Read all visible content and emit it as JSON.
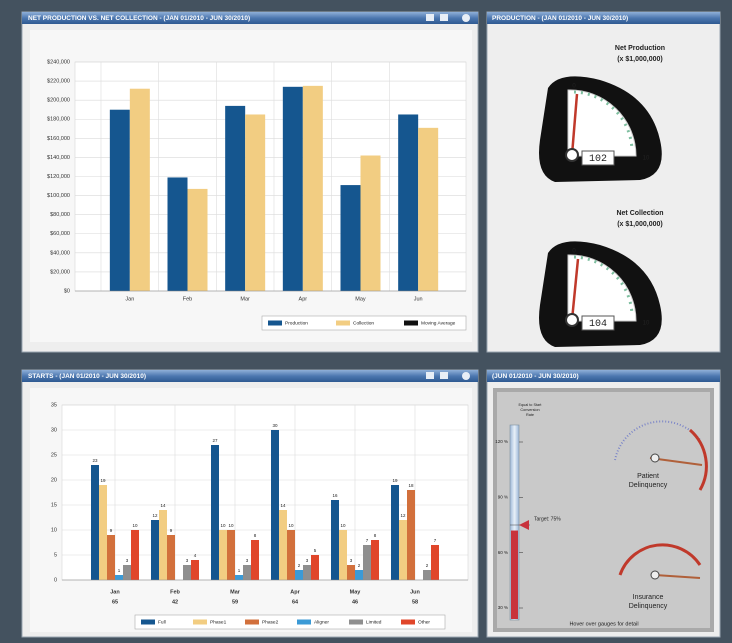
{
  "panels": [
    {
      "title": "NET PRODUCTION VS. NET COLLECTION - (JAN 01/2010 - JUN 30/2010)"
    },
    {
      "title": "PRODUCTION - (JAN 01/2010 - JUN 30/2010)"
    },
    {
      "title": "STARTS - (JAN 01/2010 - JUN 30/2010)"
    },
    {
      "title": "(JUN 01/2010 - JUN 30/2010)"
    }
  ],
  "chart_data": [
    {
      "type": "bar",
      "categories": [
        "Jan",
        "Feb",
        "Mar",
        "Apr",
        "May",
        "Jun"
      ],
      "series": [
        {
          "name": "Production",
          "color": "#15568f",
          "values": [
            190000,
            119000,
            194000,
            214000,
            111000,
            185000
          ]
        },
        {
          "name": "Collection",
          "color": "#f2cd82",
          "values": [
            212000,
            107000,
            185000,
            215000,
            142000,
            171000
          ]
        },
        {
          "name": "Moving Average",
          "color": "#111111",
          "values": [
            null,
            null,
            null,
            null,
            null,
            null
          ]
        }
      ],
      "ylim": [
        0,
        240000
      ],
      "yticks": [
        {
          "value": 0,
          "label": "$0"
        },
        {
          "value": 20000,
          "label": "$20,000"
        },
        {
          "value": 40000,
          "label": "$40,000"
        },
        {
          "value": 60000,
          "label": "$60,000"
        },
        {
          "value": 80000,
          "label": "$80,000"
        },
        {
          "value": 100000,
          "label": "$100,000"
        },
        {
          "value": 120000,
          "label": "$120,000"
        },
        {
          "value": 140000,
          "label": "$140,000"
        },
        {
          "value": 160000,
          "label": "$160,000"
        },
        {
          "value": 180000,
          "label": "$180,000"
        },
        {
          "value": 200000,
          "label": "$200,000"
        },
        {
          "value": 220000,
          "label": "$220,000"
        },
        {
          "value": 240000,
          "label": "$240,000"
        }
      ],
      "grid": true,
      "legend": "bottom-right"
    },
    {
      "type": "bar",
      "categories": [
        "Jan",
        "Feb",
        "Mar",
        "Apr",
        "May",
        "Jun"
      ],
      "category_totals": [
        65,
        42,
        59,
        64,
        46,
        58
      ],
      "series": [
        {
          "name": "Full",
          "color": "#15568f",
          "values": [
            23,
            12,
            27,
            30,
            16,
            19
          ]
        },
        {
          "name": "Phase1",
          "color": "#f2cd82",
          "values": [
            19,
            14,
            10,
            14,
            10,
            12
          ]
        },
        {
          "name": "Phase2",
          "color": "#d2703c",
          "values": [
            9,
            9,
            10,
            10,
            3,
            18
          ]
        },
        {
          "name": "Aligner",
          "color": "#3b9ad6",
          "values": [
            1,
            0,
            1,
            2,
            2,
            0
          ]
        },
        {
          "name": "Limited",
          "color": "#8f8f8f",
          "values": [
            3,
            3,
            3,
            3,
            7,
            2
          ]
        },
        {
          "name": "Other",
          "color": "#e0462a",
          "values": [
            10,
            4,
            8,
            5,
            8,
            7
          ]
        }
      ],
      "ylim": [
        0,
        35
      ],
      "yticks": [
        0,
        5,
        10,
        15,
        20,
        25,
        30,
        35
      ],
      "grid": true,
      "data_labels": true,
      "legend": "bottom"
    }
  ],
  "gauges": [
    {
      "title": "Net Production",
      "subtitle": "(x $1,000,000)",
      "display": "102",
      "scale": [
        "0",
        "10"
      ]
    },
    {
      "title": "Net Collection",
      "subtitle": "(x $1,000,000)",
      "display": "104",
      "scale": [
        "0",
        "10"
      ]
    }
  ],
  "conversion": {
    "title": [
      "Equal to Start",
      "Conversion",
      "Rate"
    ],
    "ylim": [
      30,
      120
    ],
    "yticks": [
      {
        "value": 120,
        "label": "120 %"
      },
      {
        "value": 90,
        "label": "90 %"
      },
      {
        "value": 60,
        "label": "60 %"
      },
      {
        "value": 30,
        "label": "30 %"
      }
    ],
    "value": 72,
    "target": 75,
    "target_label": "Target: 75%"
  },
  "delinquency": [
    {
      "label": [
        "Patient",
        "Delinquency"
      ]
    },
    {
      "label": [
        "Insurance",
        "Delinquency"
      ]
    }
  ],
  "footer": "Hover over gauges for detail"
}
